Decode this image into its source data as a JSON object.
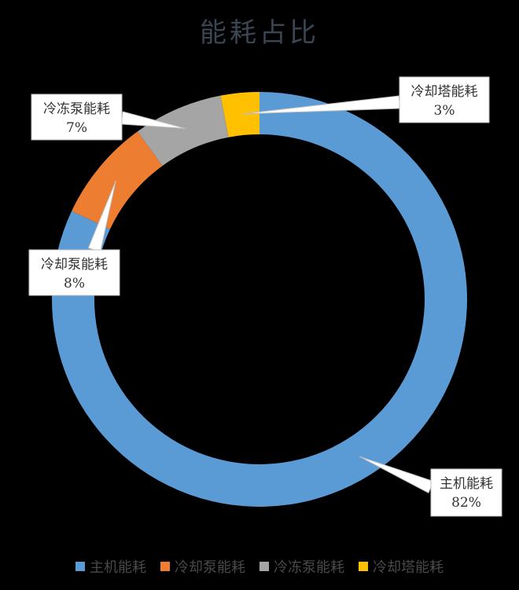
{
  "chart_data": {
    "type": "pie",
    "title": "能耗占比",
    "categories": [
      "主机能耗",
      "冷却泵能耗",
      "冷冻泵能耗",
      "冷却塔能耗"
    ],
    "values": [
      82,
      8,
      7,
      3
    ],
    "labels": [
      "82%",
      "8%",
      "7%",
      "3%"
    ],
    "colors": [
      "#5b9bd5",
      "#ed7d31",
      "#a5a5a5",
      "#ffc000"
    ],
    "legend_position": "bottom",
    "background": "#000000",
    "donut": true
  }
}
